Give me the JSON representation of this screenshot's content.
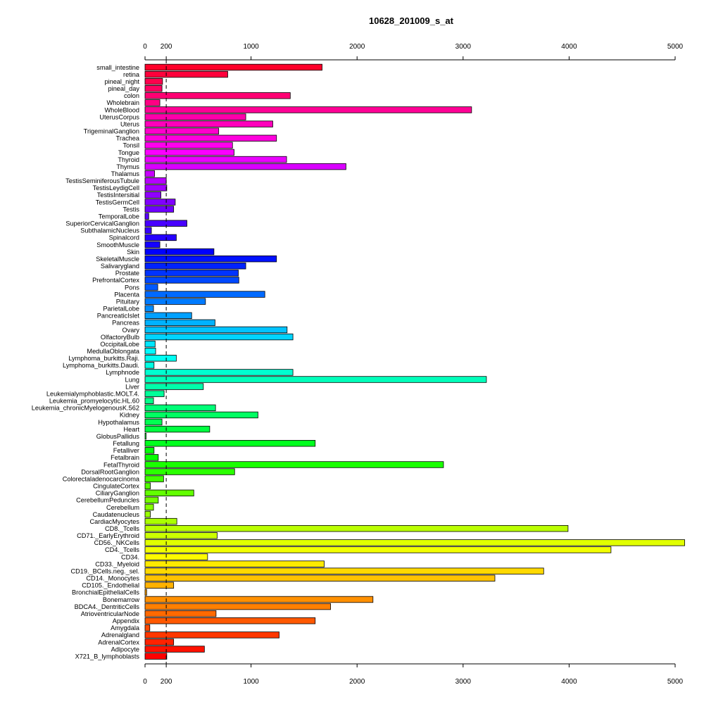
{
  "chart_data": {
    "type": "bar",
    "orientation": "horizontal",
    "title": "10628_201009_s_at",
    "xlim": [
      0,
      5000
    ],
    "x_ticks": [
      0,
      200,
      1000,
      2000,
      3000,
      4000,
      5000
    ],
    "reference_line": {
      "value": 200,
      "style": "dashed"
    },
    "axes_position": "top and bottom",
    "grid": false,
    "legend": "none",
    "categories": [
      "small_intestine",
      "retina",
      "pineal_night",
      "pineal_day",
      "colon",
      "Wholebrain",
      "WholeBlood",
      "UterusCorpus",
      "Uterus",
      "TrigeminalGanglion",
      "Trachea",
      "Tonsil",
      "Tongue",
      "Thyroid",
      "Thymus",
      "Thalamus",
      "TestisSeminiferousTubule",
      "TestisLeydigCell",
      "TestisIntersitial",
      "TestisGermCell",
      "Testis",
      "TemporalLobe",
      "SuperiorCervicalGanglion",
      "SubthalamicNucleus",
      "Spinalcord",
      "SmoothMuscle",
      "Skin",
      "SkeletalMuscle",
      "Salivarygland",
      "Prostate",
      "PrefrontalCortex",
      "Pons",
      "Placenta",
      "Pituitary",
      "ParietalLobe",
      "PancreaticIslet",
      "Pancreas",
      "Ovary",
      "OlfactoryBulb",
      "OccipitalLobe",
      "MedullaOblongata",
      "Lymphoma_burkitts.Raji.",
      "Lymphoma_burkitts.Daudi.",
      "Lymphnode",
      "Lung",
      "Liver",
      "Leukemialymphoblastic.MOLT.4.",
      "Leukemia_promyelocytic.HL.60",
      "Leukemia_chronicMyelogenousK.562",
      "Kidney",
      "Hypothalamus",
      "Heart",
      "GlobusPallidus",
      "Fetallung",
      "Fetalliver",
      "Fetalbrain",
      "FetalThyroid",
      "DorsalRootGanglion",
      "Colorectaladenocarcinoma",
      "CingulateCortex",
      "CiliaryGanglion",
      "CerebellumPeduncles",
      "Cerebellum",
      "Caudatenucleus",
      "CardiacMyocytes",
      "CD8._Tcells",
      "CD71._EarlyErythroid",
      "CD56._NKCells",
      "CD4._Tcells",
      "CD34.",
      "CD33._Myeloid",
      "CD19._BCells.neg._sel.",
      "CD14._Monocytes",
      "CD105._Endothelial",
      "BronchialEpithelialCells",
      "Bonemarrow",
      "BDCA4._DentriticCells",
      "AtrioventricularNode",
      "Appendix",
      "Amygdala",
      "Adrenalgland",
      "AdrenalCortex",
      "Adipocyte",
      "X721_B_lymphoblasts"
    ],
    "values": [
      1670,
      780,
      165,
      160,
      1370,
      140,
      3080,
      950,
      1205,
      695,
      1240,
      825,
      840,
      1335,
      1895,
      90,
      200,
      205,
      150,
      285,
      270,
      35,
      395,
      60,
      295,
      140,
      650,
      1240,
      950,
      880,
      885,
      120,
      1130,
      570,
      80,
      440,
      660,
      1340,
      1395,
      95,
      100,
      295,
      85,
      1395,
      3220,
      550,
      180,
      80,
      665,
      1065,
      160,
      610,
      10,
      1605,
      85,
      125,
      2815,
      845,
      175,
      50,
      460,
      125,
      80,
      50,
      300,
      3990,
      680,
      5090,
      4395,
      590,
      1690,
      3760,
      3300,
      270,
      15,
      2150,
      1750,
      670,
      1605,
      45,
      1265,
      270,
      560,
      205
    ]
  }
}
